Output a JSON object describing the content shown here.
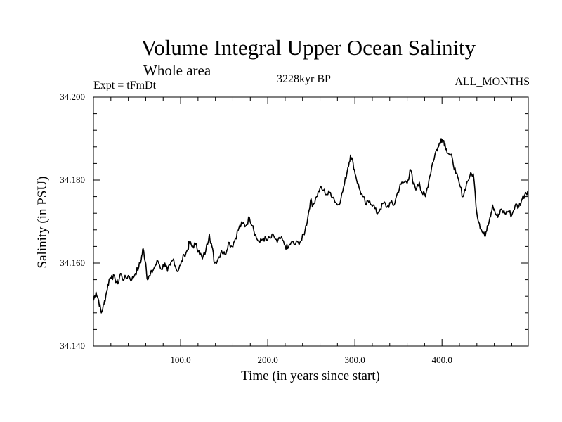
{
  "header": {
    "title": "Volume Integral Upper Ocean Salinity",
    "subtitle": "Whole area",
    "expt_label": "Expt = tFmDt",
    "center_label": "3228kyr BP",
    "right_label": "ALL_MONTHS"
  },
  "chart_data": {
    "type": "line",
    "title": "Volume Integral Upper Ocean Salinity",
    "xlabel": "Time (in years since start)",
    "ylabel": "Salinity (in PSU)",
    "xlim": [
      0,
      499
    ],
    "ylim": [
      34.14,
      34.2
    ],
    "grid": false,
    "x_ticks": [
      100,
      200,
      300,
      400
    ],
    "x_tick_labels": [
      "100.0",
      "200.0",
      "300.0",
      "400.0"
    ],
    "y_ticks": [
      34.14,
      34.16,
      34.18,
      34.2
    ],
    "y_tick_labels": [
      "34.140",
      "34.160",
      "34.180",
      "34.200"
    ],
    "series": [
      {
        "name": "Salinity",
        "color": "#000000",
        "points": [
          [
            0,
            34.151
          ],
          [
            3,
            34.153
          ],
          [
            6,
            34.151
          ],
          [
            9,
            34.148
          ],
          [
            12,
            34.15
          ],
          [
            15,
            34.153
          ],
          [
            18,
            34.156
          ],
          [
            21,
            34.157
          ],
          [
            25,
            34.156
          ],
          [
            28,
            34.155
          ],
          [
            31,
            34.1575
          ],
          [
            35,
            34.156
          ],
          [
            40,
            34.157
          ],
          [
            44,
            34.156
          ],
          [
            48,
            34.1575
          ],
          [
            52,
            34.159
          ],
          [
            55,
            34.161
          ],
          [
            57,
            34.1635
          ],
          [
            60,
            34.16
          ],
          [
            62,
            34.156
          ],
          [
            65,
            34.157
          ],
          [
            70,
            34.159
          ],
          [
            74,
            34.1605
          ],
          [
            78,
            34.1585
          ],
          [
            82,
            34.16
          ],
          [
            85,
            34.158
          ],
          [
            88,
            34.1595
          ],
          [
            92,
            34.161
          ],
          [
            96,
            34.158
          ],
          [
            100,
            34.1595
          ],
          [
            104,
            34.162
          ],
          [
            108,
            34.163
          ],
          [
            110,
            34.165
          ],
          [
            113,
            34.164
          ],
          [
            117,
            34.1645
          ],
          [
            121,
            34.163
          ],
          [
            125,
            34.161
          ],
          [
            129,
            34.163
          ],
          [
            133,
            34.167
          ],
          [
            136,
            34.164
          ],
          [
            139,
            34.16
          ],
          [
            143,
            34.161
          ],
          [
            147,
            34.163
          ],
          [
            151,
            34.162
          ],
          [
            155,
            34.165
          ],
          [
            159,
            34.164
          ],
          [
            163,
            34.166
          ],
          [
            167,
            34.1685
          ],
          [
            171,
            34.1695
          ],
          [
            175,
            34.169
          ],
          [
            179,
            34.171
          ],
          [
            183,
            34.169
          ],
          [
            187,
            34.166
          ],
          [
            191,
            34.165
          ],
          [
            195,
            34.166
          ],
          [
            199,
            34.1655
          ],
          [
            203,
            34.166
          ],
          [
            207,
            34.1665
          ],
          [
            211,
            34.165
          ],
          [
            215,
            34.166
          ],
          [
            219,
            34.1645
          ],
          [
            223,
            34.1635
          ],
          [
            227,
            34.165
          ],
          [
            231,
            34.1645
          ],
          [
            235,
            34.165
          ],
          [
            239,
            34.1655
          ],
          [
            243,
            34.168
          ],
          [
            246,
            34.171
          ],
          [
            249,
            34.175
          ],
          [
            252,
            34.174
          ],
          [
            256,
            34.176
          ],
          [
            260,
            34.178
          ],
          [
            264,
            34.1775
          ],
          [
            268,
            34.1765
          ],
          [
            272,
            34.177
          ],
          [
            276,
            34.1755
          ],
          [
            280,
            34.174
          ],
          [
            284,
            34.1755
          ],
          [
            288,
            34.179
          ],
          [
            292,
            34.183
          ],
          [
            295,
            34.186
          ],
          [
            298,
            34.184
          ],
          [
            301,
            34.181
          ],
          [
            305,
            34.178
          ],
          [
            309,
            34.176
          ],
          [
            313,
            34.174
          ],
          [
            317,
            34.175
          ],
          [
            321,
            34.174
          ],
          [
            325,
            34.172
          ],
          [
            329,
            34.173
          ],
          [
            333,
            34.1745
          ],
          [
            337,
            34.1735
          ],
          [
            341,
            34.1745
          ],
          [
            345,
            34.174
          ],
          [
            349,
            34.177
          ],
          [
            353,
            34.179
          ],
          [
            357,
            34.1795
          ],
          [
            361,
            34.18
          ],
          [
            364,
            34.1825
          ],
          [
            367,
            34.179
          ],
          [
            371,
            34.178
          ],
          [
            374,
            34.1795
          ],
          [
            377,
            34.177
          ],
          [
            381,
            34.176
          ],
          [
            385,
            34.18
          ],
          [
            389,
            34.184
          ],
          [
            393,
            34.187
          ],
          [
            396,
            34.188
          ],
          [
            399,
            34.19
          ],
          [
            402,
            34.1895
          ],
          [
            405,
            34.1875
          ],
          [
            409,
            34.186
          ],
          [
            412,
            34.185
          ],
          [
            416,
            34.1815
          ],
          [
            420,
            34.179
          ],
          [
            424,
            34.176
          ],
          [
            428,
            34.179
          ],
          [
            432,
            34.181
          ],
          [
            436,
            34.1815
          ],
          [
            440,
            34.172
          ],
          [
            443,
            34.1695
          ],
          [
            446,
            34.1675
          ],
          [
            449,
            34.1665
          ],
          [
            452,
            34.169
          ],
          [
            455,
            34.171
          ],
          [
            458,
            34.174
          ],
          [
            461,
            34.172
          ],
          [
            464,
            34.171
          ],
          [
            468,
            34.173
          ],
          [
            472,
            34.172
          ],
          [
            476,
            34.1725
          ],
          [
            480,
            34.1715
          ],
          [
            484,
            34.174
          ],
          [
            488,
            34.1735
          ],
          [
            492,
            34.1755
          ],
          [
            496,
            34.177
          ],
          [
            499,
            34.1775
          ]
        ]
      }
    ]
  }
}
